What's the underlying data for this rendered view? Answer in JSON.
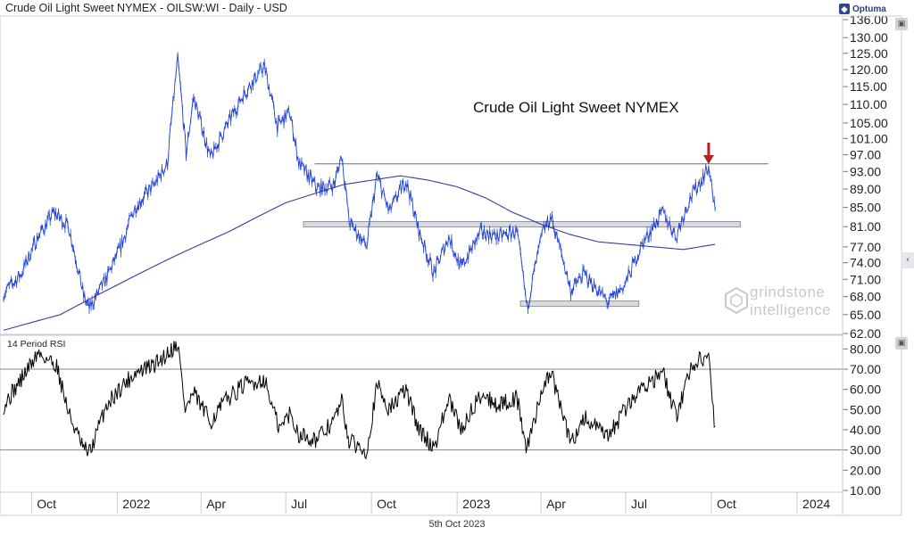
{
  "header": {
    "title": "Crude Oil Light Sweet NYMEX - OILSW:WI - Daily - USD",
    "brand": "Optuma"
  },
  "footer": {
    "date": "5th Oct 2023"
  },
  "watermark": {
    "line1": "grindstone",
    "line2": "intelligence"
  },
  "chart_data": [
    {
      "type": "line",
      "panel": "price",
      "title": "Crude Oil Light Sweet NYMEX",
      "y_ticks": [
        "136.00",
        "130.00",
        "125.00",
        "120.00",
        "115.00",
        "110.00",
        "105.00",
        "101.00",
        "97.00",
        "93.00",
        "89.00",
        "85.00",
        "81.00",
        "77.00",
        "74.00",
        "71.00",
        "68.00",
        "65.00",
        "62.00"
      ],
      "x_ticks": [
        "Oct",
        "2022",
        "Apr",
        "Jul",
        "Oct",
        "2023",
        "Apr",
        "Jul",
        "Oct",
        "2024"
      ],
      "x_range": [
        "2021-09-01",
        "2024-02-15"
      ],
      "y_range": [
        62,
        136
      ],
      "y_scale": "log",
      "series": [
        {
          "kind": "price",
          "color": "#1f3fd6",
          "points": [
            [
              "2021-09-01",
              68.5
            ],
            [
              "2021-09-20",
              72
            ],
            [
              "2021-10-08",
              79
            ],
            [
              "2021-10-25",
              84
            ],
            [
              "2021-11-10",
              81
            ],
            [
              "2021-11-26",
              68
            ],
            [
              "2021-12-02",
              66
            ],
            [
              "2021-12-20",
              71
            ],
            [
              "2022-01-05",
              77
            ],
            [
              "2022-01-20",
              85
            ],
            [
              "2022-02-10",
              90
            ],
            [
              "2022-02-24",
              95
            ],
            [
              "2022-03-07",
              123
            ],
            [
              "2022-03-16",
              97
            ],
            [
              "2022-03-24",
              112
            ],
            [
              "2022-04-11",
              96
            ],
            [
              "2022-04-28",
              104
            ],
            [
              "2022-05-17",
              113
            ],
            [
              "2022-06-08",
              121
            ],
            [
              "2022-06-22",
              104
            ],
            [
              "2022-07-05",
              108
            ],
            [
              "2022-07-15",
              95
            ],
            [
              "2022-08-04",
              89
            ],
            [
              "2022-08-22",
              90
            ],
            [
              "2022-08-30",
              97
            ],
            [
              "2022-09-07",
              82
            ],
            [
              "2022-09-26",
              77
            ],
            [
              "2022-10-07",
              92
            ],
            [
              "2022-10-20",
              84
            ],
            [
              "2022-11-07",
              91
            ],
            [
              "2022-11-21",
              80
            ],
            [
              "2022-12-07",
              72
            ],
            [
              "2022-12-23",
              79
            ],
            [
              "2023-01-05",
              73
            ],
            [
              "2023-01-27",
              80
            ],
            [
              "2023-02-14",
              79
            ],
            [
              "2023-03-06",
              80
            ],
            [
              "2023-03-17",
              66
            ],
            [
              "2023-04-03",
              80
            ],
            [
              "2023-04-12",
              83
            ],
            [
              "2023-05-03",
              69
            ],
            [
              "2023-05-17",
              72
            ],
            [
              "2023-06-12",
              67
            ],
            [
              "2023-06-30",
              70
            ],
            [
              "2023-07-20",
              78
            ],
            [
              "2023-08-10",
              84
            ],
            [
              "2023-08-24",
              79
            ],
            [
              "2023-09-08",
              87
            ],
            [
              "2023-09-20",
              91
            ],
            [
              "2023-09-28",
              94
            ],
            [
              "2023-10-05",
              84
            ]
          ]
        },
        {
          "kind": "moving-average",
          "color": "#3a3aa0",
          "points": [
            [
              "2021-09-01",
              62.5
            ],
            [
              "2021-11-01",
              65
            ],
            [
              "2022-01-01",
              70
            ],
            [
              "2022-03-01",
              75
            ],
            [
              "2022-05-01",
              80
            ],
            [
              "2022-07-01",
              86
            ],
            [
              "2022-09-01",
              90
            ],
            [
              "2022-11-01",
              92
            ],
            [
              "2022-12-01",
              91
            ],
            [
              "2023-01-01",
              89.5
            ],
            [
              "2023-02-01",
              87
            ],
            [
              "2023-03-01",
              84
            ],
            [
              "2023-04-01",
              81.5
            ],
            [
              "2023-05-01",
              79.5
            ],
            [
              "2023-06-01",
              78
            ],
            [
              "2023-07-01",
              77.5
            ],
            [
              "2023-08-01",
              77
            ],
            [
              "2023-09-01",
              76.5
            ],
            [
              "2023-10-05",
              77.5
            ]
          ]
        }
      ],
      "annotations": [
        {
          "kind": "horizontal-line",
          "value": 94.8,
          "from": "2022-08-01",
          "to": "2023-12-01"
        },
        {
          "kind": "horizontal-zone",
          "value": 81.5,
          "from": "2022-07-20",
          "to": "2023-11-01"
        },
        {
          "kind": "horizontal-zone",
          "value": 66.8,
          "from": "2023-03-10",
          "to": "2023-07-15"
        },
        {
          "kind": "arrow-down",
          "date": "2023-09-28",
          "color": "#b32222"
        }
      ]
    },
    {
      "type": "line",
      "panel": "rsi",
      "label": "14 Period RSI",
      "y_ticks": [
        "80.00",
        "70.00",
        "60.00",
        "50.00",
        "40.00",
        "30.00",
        "20.00",
        "10.00"
      ],
      "y_range": [
        10,
        85
      ],
      "reference_lines": [
        70,
        30
      ],
      "series": [
        {
          "color": "#000000",
          "points": [
            [
              "2021-09-01",
              52
            ],
            [
              "2021-09-20",
              65
            ],
            [
              "2021-10-08",
              78
            ],
            [
              "2021-10-28",
              72
            ],
            [
              "2021-11-10",
              48
            ],
            [
              "2021-11-26",
              30
            ],
            [
              "2021-12-03",
              29
            ],
            [
              "2021-12-20",
              52
            ],
            [
              "2022-01-05",
              61
            ],
            [
              "2022-01-20",
              68
            ],
            [
              "2022-02-10",
              72
            ],
            [
              "2022-02-24",
              78
            ],
            [
              "2022-03-07",
              83
            ],
            [
              "2022-03-15",
              50
            ],
            [
              "2022-03-24",
              58
            ],
            [
              "2022-04-11",
              44
            ],
            [
              "2022-04-28",
              55
            ],
            [
              "2022-05-17",
              62
            ],
            [
              "2022-06-08",
              65
            ],
            [
              "2022-06-24",
              40
            ],
            [
              "2022-07-05",
              48
            ],
            [
              "2022-07-15",
              38
            ],
            [
              "2022-08-04",
              35
            ],
            [
              "2022-08-22",
              45
            ],
            [
              "2022-08-30",
              54
            ],
            [
              "2022-09-07",
              34
            ],
            [
              "2022-09-26",
              30
            ],
            [
              "2022-10-07",
              62
            ],
            [
              "2022-10-20",
              50
            ],
            [
              "2022-11-07",
              60
            ],
            [
              "2022-11-21",
              40
            ],
            [
              "2022-12-07",
              31
            ],
            [
              "2022-12-23",
              55
            ],
            [
              "2023-01-05",
              40
            ],
            [
              "2023-01-27",
              58
            ],
            [
              "2023-02-14",
              52
            ],
            [
              "2023-03-06",
              56
            ],
            [
              "2023-03-17",
              30
            ],
            [
              "2023-04-03",
              62
            ],
            [
              "2023-04-12",
              68
            ],
            [
              "2023-05-03",
              33
            ],
            [
              "2023-05-17",
              46
            ],
            [
              "2023-06-12",
              36
            ],
            [
              "2023-06-30",
              50
            ],
            [
              "2023-07-20",
              62
            ],
            [
              "2023-08-10",
              68
            ],
            [
              "2023-08-24",
              46
            ],
            [
              "2023-09-08",
              70
            ],
            [
              "2023-09-20",
              76
            ],
            [
              "2023-09-28",
              75
            ],
            [
              "2023-10-05",
              40
            ]
          ]
        }
      ]
    }
  ]
}
